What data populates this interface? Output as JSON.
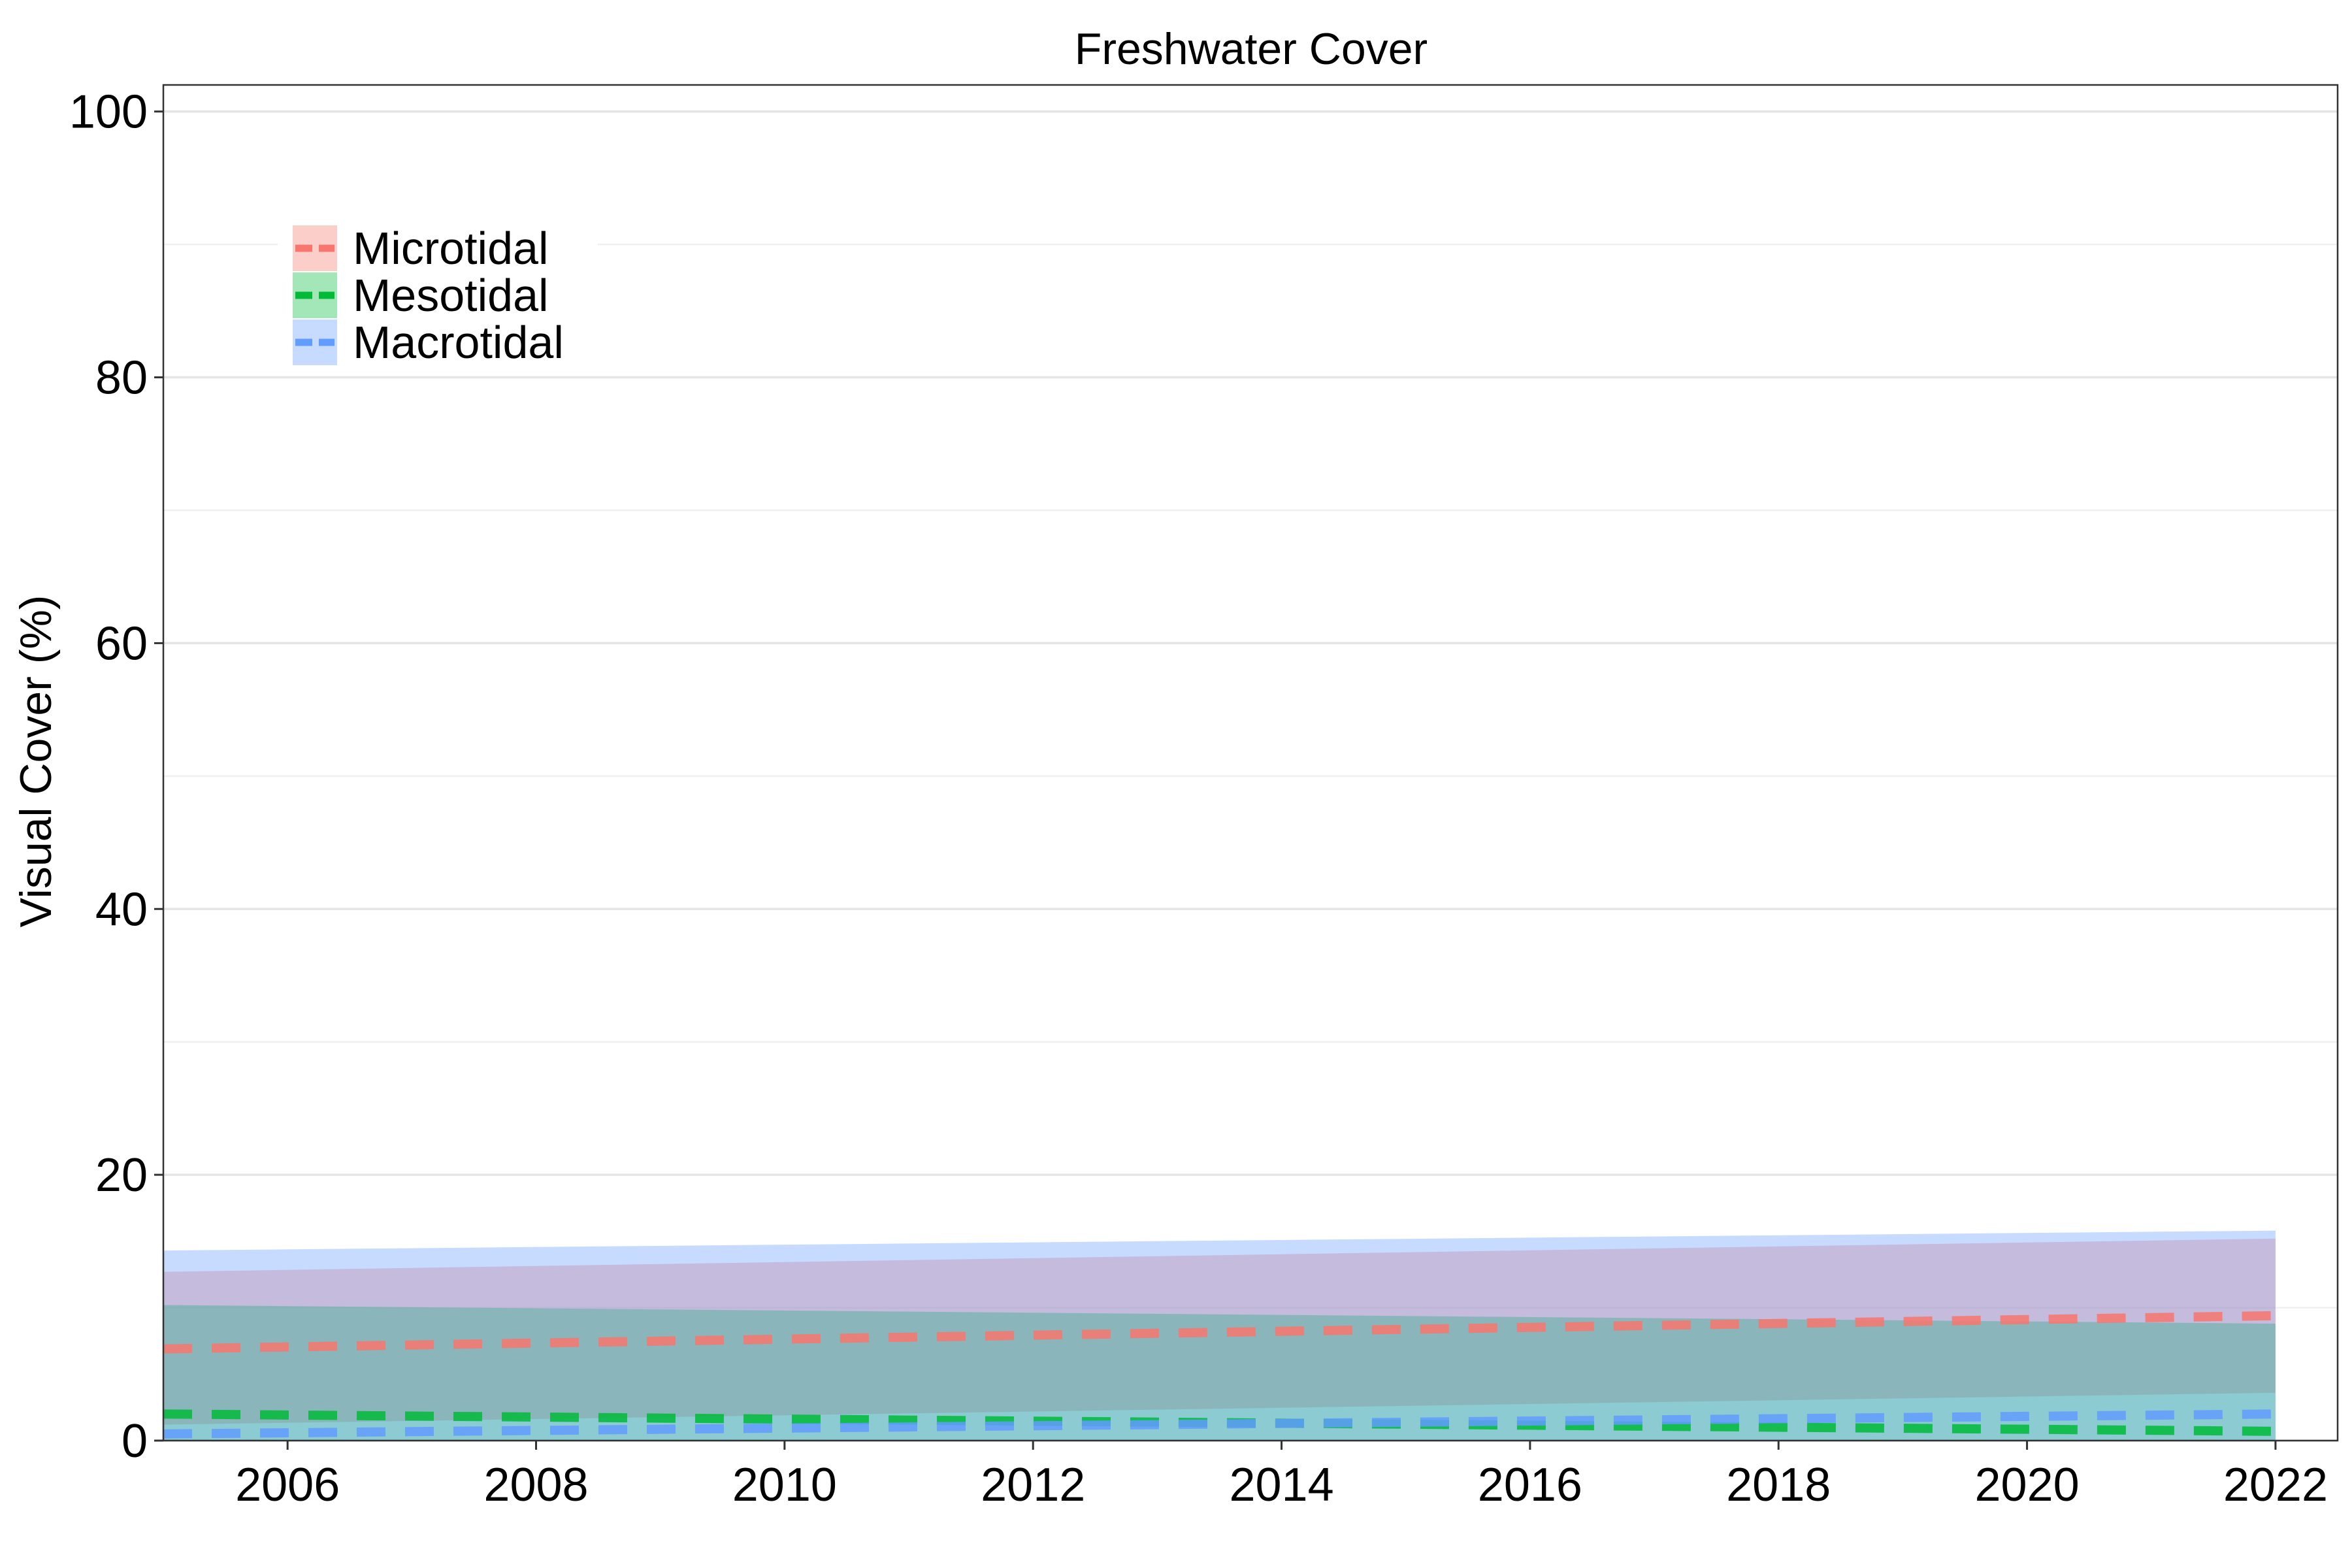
{
  "chart_data": {
    "type": "area",
    "title": "Freshwater Cover",
    "xlabel": "",
    "ylabel": "Visual Cover (%)",
    "xlim": [
      2005,
      2022.5
    ],
    "ylim": [
      0,
      102
    ],
    "x_ticks": [
      2006,
      2008,
      2010,
      2012,
      2014,
      2016,
      2018,
      2020,
      2022
    ],
    "y_ticks": [
      0,
      20,
      40,
      60,
      80,
      100
    ],
    "grid": true,
    "legend_position": "top-left",
    "series": [
      {
        "name": "Microtidal",
        "color": "#F8766D",
        "x": [
          2005,
          2022
        ],
        "mean": [
          6.9,
          9.4
        ],
        "lower": [
          1.2,
          3.6
        ],
        "upper": [
          12.7,
          15.2
        ]
      },
      {
        "name": "Mesotidal",
        "color": "#00BA38",
        "x": [
          2005,
          2022
        ],
        "mean": [
          2.0,
          0.7
        ],
        "lower": [
          0.0,
          0.0
        ],
        "upper": [
          10.2,
          8.8
        ]
      },
      {
        "name": "Macrotidal",
        "color": "#619CFF",
        "x": [
          2005,
          2022
        ],
        "mean": [
          0.5,
          2.0
        ],
        "lower": [
          0.0,
          0.0
        ],
        "upper": [
          14.3,
          15.8
        ]
      }
    ]
  }
}
